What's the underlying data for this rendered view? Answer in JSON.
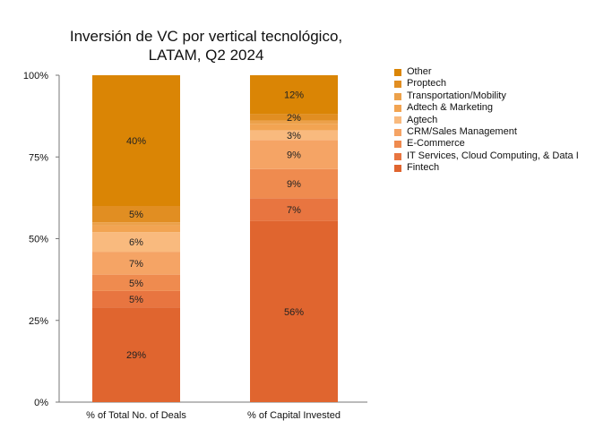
{
  "chart_data": {
    "type": "bar",
    "stacked": true,
    "title_lines": [
      "Inversión de VC por vertical tecnológico,",
      "LATAM, Q2 2024"
    ],
    "categories": [
      "% of Total No. of Deals",
      "% of Capital Invested"
    ],
    "y_ticks": [
      "0%",
      "25%",
      "50%",
      "75%",
      "100%"
    ],
    "ylim": [
      0,
      100
    ],
    "legend_position": "right",
    "series": [
      {
        "name": "Fintech",
        "color": "#E0652F",
        "values": [
          29,
          56
        ],
        "labels": [
          "29%",
          "56%"
        ]
      },
      {
        "name": "IT Services, Cloud Computing, & Data Infrastructure",
        "legend_label": "IT Services, Cloud Computing, & Data I",
        "color": "#E87540",
        "values": [
          5,
          7
        ],
        "labels": [
          "5%",
          "7%"
        ]
      },
      {
        "name": "E-Commerce",
        "color": "#EF8B4F",
        "values": [
          5,
          9
        ],
        "labels": [
          "5%",
          "9%"
        ]
      },
      {
        "name": "CRM/Sales Management",
        "color": "#F5A465",
        "values": [
          7,
          9
        ],
        "labels": [
          "7%",
          "9%"
        ]
      },
      {
        "name": "Agtech",
        "color": "#F9BA7E",
        "values": [
          6,
          3
        ],
        "labels": [
          "6%",
          "3%"
        ]
      },
      {
        "name": "Adtech & Marketing",
        "color": "#F2A452",
        "values": [
          2,
          2
        ],
        "labels": [
          "",
          ""
        ]
      },
      {
        "name": "Transportation/Mobility",
        "color": "#ECA14A",
        "values": [
          1,
          1
        ],
        "labels": [
          "",
          ""
        ]
      },
      {
        "name": "Proptech",
        "color": "#E18E22",
        "values": [
          5,
          2
        ],
        "labels": [
          "5%",
          "2%"
        ]
      },
      {
        "name": "Other",
        "color": "#DA8505",
        "values": [
          40,
          12
        ],
        "labels": [
          "40%",
          "12%"
        ]
      }
    ]
  }
}
